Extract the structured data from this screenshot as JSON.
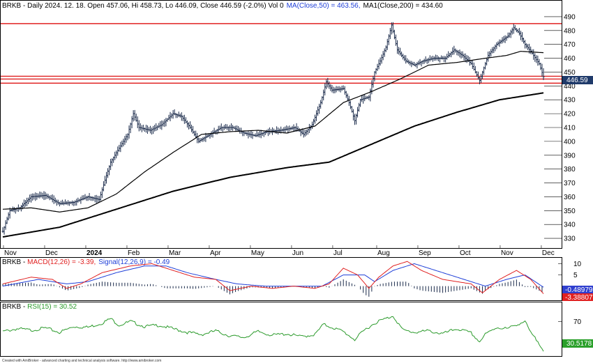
{
  "chart_data": [
    {
      "type": "candlestick",
      "title": "BRKB - Daily 2024. 12. 18. Open 457.06, Hi 458.73, Lo 446.09, Close 446.59 (-2.0%) Vol 0",
      "header": {
        "prefix": "BRKB - Daily 2024. 12. 18. Open 457.06, Hi 458.73, Lo 446.09, Close 446.59 (-2.0%) Vol 0",
        "ma50": "MA(Close,50) = 463.56,",
        "ma200": "MA1(Close,200) = 434.60"
      },
      "ylim": [
        325,
        495
      ],
      "y_ticks": [
        "330",
        "340",
        "350",
        "360",
        "370",
        "380",
        "390",
        "400",
        "410",
        "420",
        "430",
        "440",
        "450",
        "460",
        "470",
        "480",
        "490"
      ],
      "x_ticks": [
        "Nov",
        "Dec",
        "2024",
        "Feb",
        "Mar",
        "Apr",
        "May",
        "Jun",
        "Jul",
        "Aug",
        "Sep",
        "Oct",
        "Nov",
        "Dec"
      ],
      "last_close_label": "446.59",
      "horizontal_lines": [
        485,
        447,
        445,
        442
      ],
      "price_anchors": [
        [
          0,
          335
        ],
        [
          5,
          350
        ],
        [
          12,
          352
        ],
        [
          20,
          360
        ],
        [
          30,
          361
        ],
        [
          40,
          355
        ],
        [
          50,
          356
        ],
        [
          60,
          360
        ],
        [
          68,
          358
        ],
        [
          72,
          372
        ],
        [
          76,
          385
        ],
        [
          82,
          395
        ],
        [
          88,
          405
        ],
        [
          92,
          420
        ],
        [
          96,
          410
        ],
        [
          104,
          408
        ],
        [
          112,
          412
        ],
        [
          120,
          420
        ],
        [
          126,
          418
        ],
        [
          132,
          410
        ],
        [
          138,
          400
        ],
        [
          146,
          405
        ],
        [
          154,
          410
        ],
        [
          162,
          410
        ],
        [
          170,
          406
        ],
        [
          178,
          404
        ],
        [
          186,
          407
        ],
        [
          196,
          408
        ],
        [
          206,
          410
        ],
        [
          212,
          405
        ],
        [
          218,
          412
        ],
        [
          224,
          428
        ],
        [
          228,
          443
        ],
        [
          232,
          437
        ],
        [
          240,
          438
        ],
        [
          244,
          428
        ],
        [
          248,
          415
        ],
        [
          252,
          430
        ],
        [
          258,
          432
        ],
        [
          262,
          450
        ],
        [
          266,
          458
        ],
        [
          270,
          468
        ],
        [
          274,
          484
        ],
        [
          278,
          466
        ],
        [
          284,
          458
        ],
        [
          290,
          455
        ],
        [
          296,
          458
        ],
        [
          304,
          460
        ],
        [
          312,
          460
        ],
        [
          318,
          466
        ],
        [
          324,
          462
        ],
        [
          330,
          456
        ],
        [
          334,
          448
        ],
        [
          336,
          444
        ],
        [
          338,
          450
        ],
        [
          342,
          462
        ],
        [
          348,
          470
        ],
        [
          356,
          476
        ],
        [
          360,
          482
        ],
        [
          364,
          478
        ],
        [
          368,
          470
        ],
        [
          372,
          465
        ],
        [
          378,
          456
        ],
        [
          381,
          446.6
        ]
      ],
      "ma50_anchors": [
        [
          0,
          351
        ],
        [
          20,
          352
        ],
        [
          40,
          349
        ],
        [
          60,
          352
        ],
        [
          80,
          362
        ],
        [
          100,
          378
        ],
        [
          120,
          392
        ],
        [
          140,
          405
        ],
        [
          160,
          407
        ],
        [
          180,
          408
        ],
        [
          200,
          406
        ],
        [
          220,
          411
        ],
        [
          240,
          428
        ],
        [
          260,
          436
        ],
        [
          280,
          445
        ],
        [
          300,
          455
        ],
        [
          320,
          457
        ],
        [
          340,
          460
        ],
        [
          355,
          462
        ],
        [
          365,
          465
        ],
        [
          381,
          464
        ]
      ],
      "ma200_anchors": [
        [
          0,
          331
        ],
        [
          40,
          338
        ],
        [
          80,
          351
        ],
        [
          120,
          364
        ],
        [
          160,
          374
        ],
        [
          200,
          381
        ],
        [
          230,
          385
        ],
        [
          260,
          398
        ],
        [
          290,
          411
        ],
        [
          320,
          421
        ],
        [
          350,
          430
        ],
        [
          381,
          435
        ]
      ]
    },
    {
      "type": "macd",
      "label_prefix": "BRKB - ",
      "macd_label": "MACD(12,26) = -3.39,",
      "signal_label": "Signal(12,26,9) = -0.49",
      "ylim": [
        -6,
        12
      ],
      "y_ticks": [
        "10",
        "5"
      ],
      "macd_value_label": "-3.38807",
      "signal_value_label": "-0.48979",
      "macd_anchors": [
        [
          0,
          1
        ],
        [
          20,
          4
        ],
        [
          35,
          3
        ],
        [
          45,
          -1
        ],
        [
          55,
          1
        ],
        [
          70,
          6
        ],
        [
          90,
          9
        ],
        [
          105,
          10
        ],
        [
          120,
          7
        ],
        [
          135,
          4
        ],
        [
          150,
          3
        ],
        [
          160,
          -2
        ],
        [
          175,
          0
        ],
        [
          190,
          -1
        ],
        [
          205,
          0
        ],
        [
          220,
          -1
        ],
        [
          230,
          1
        ],
        [
          240,
          8
        ],
        [
          250,
          5
        ],
        [
          258,
          -1
        ],
        [
          265,
          4
        ],
        [
          275,
          9
        ],
        [
          285,
          11
        ],
        [
          295,
          7
        ],
        [
          310,
          3
        ],
        [
          330,
          1
        ],
        [
          338,
          -3
        ],
        [
          350,
          3
        ],
        [
          362,
          7
        ],
        [
          372,
          3
        ],
        [
          381,
          -3.39
        ]
      ],
      "signal_anchors": [
        [
          0,
          0
        ],
        [
          25,
          3
        ],
        [
          45,
          1
        ],
        [
          60,
          2
        ],
        [
          80,
          6
        ],
        [
          100,
          9
        ],
        [
          115,
          9
        ],
        [
          130,
          6
        ],
        [
          150,
          3
        ],
        [
          165,
          1
        ],
        [
          185,
          0
        ],
        [
          205,
          0
        ],
        [
          225,
          0
        ],
        [
          240,
          5
        ],
        [
          255,
          5
        ],
        [
          262,
          2
        ],
        [
          275,
          7
        ],
        [
          290,
          10
        ],
        [
          300,
          8
        ],
        [
          320,
          4
        ],
        [
          340,
          0
        ],
        [
          355,
          3
        ],
        [
          368,
          5
        ],
        [
          381,
          -0.49
        ]
      ]
    },
    {
      "type": "rsi",
      "label_prefix": "BRKB - ",
      "rsi_label": "RSI(15) = 30.52",
      "ylim": [
        25,
        85
      ],
      "y_ticks": [
        "70"
      ],
      "rsi_value_label": "30.5178",
      "rsi_anchors": [
        [
          0,
          56
        ],
        [
          10,
          60
        ],
        [
          20,
          58
        ],
        [
          30,
          61
        ],
        [
          40,
          55
        ],
        [
          50,
          63
        ],
        [
          60,
          62
        ],
        [
          70,
          68
        ],
        [
          76,
          74
        ],
        [
          82,
          65
        ],
        [
          90,
          70
        ],
        [
          100,
          63
        ],
        [
          110,
          65
        ],
        [
          120,
          60
        ],
        [
          130,
          55
        ],
        [
          140,
          52
        ],
        [
          150,
          57
        ],
        [
          160,
          50
        ],
        [
          170,
          48
        ],
        [
          180,
          56
        ],
        [
          190,
          51
        ],
        [
          200,
          53
        ],
        [
          210,
          49
        ],
        [
          220,
          52
        ],
        [
          226,
          66
        ],
        [
          232,
          62
        ],
        [
          240,
          56
        ],
        [
          248,
          45
        ],
        [
          256,
          60
        ],
        [
          264,
          70
        ],
        [
          270,
          74
        ],
        [
          275,
          78
        ],
        [
          282,
          58
        ],
        [
          290,
          55
        ],
        [
          300,
          57
        ],
        [
          310,
          53
        ],
        [
          320,
          60
        ],
        [
          330,
          54
        ],
        [
          336,
          42
        ],
        [
          340,
          52
        ],
        [
          348,
          62
        ],
        [
          356,
          60
        ],
        [
          362,
          66
        ],
        [
          368,
          70
        ],
        [
          372,
          54
        ],
        [
          378,
          40
        ],
        [
          381,
          30.52
        ]
      ]
    }
  ],
  "footer": "Created with AmiBroker - advanced charting and technical analysis software. http://www.amibroker.com",
  "colors": {
    "price": "#1a2a4a",
    "ma50": "#000000",
    "ma200": "#000000",
    "resistance": "#e02020",
    "macd": "#e02020",
    "signal": "#1f3fd8",
    "histogram": "#1a2a4a",
    "rsi": "#2a9a2a",
    "last_price_bg": "#1f3a6a",
    "macd_badge": "#e02020",
    "signal_badge": "#2f3fcf",
    "rsi_badge": "#2aa02a"
  }
}
